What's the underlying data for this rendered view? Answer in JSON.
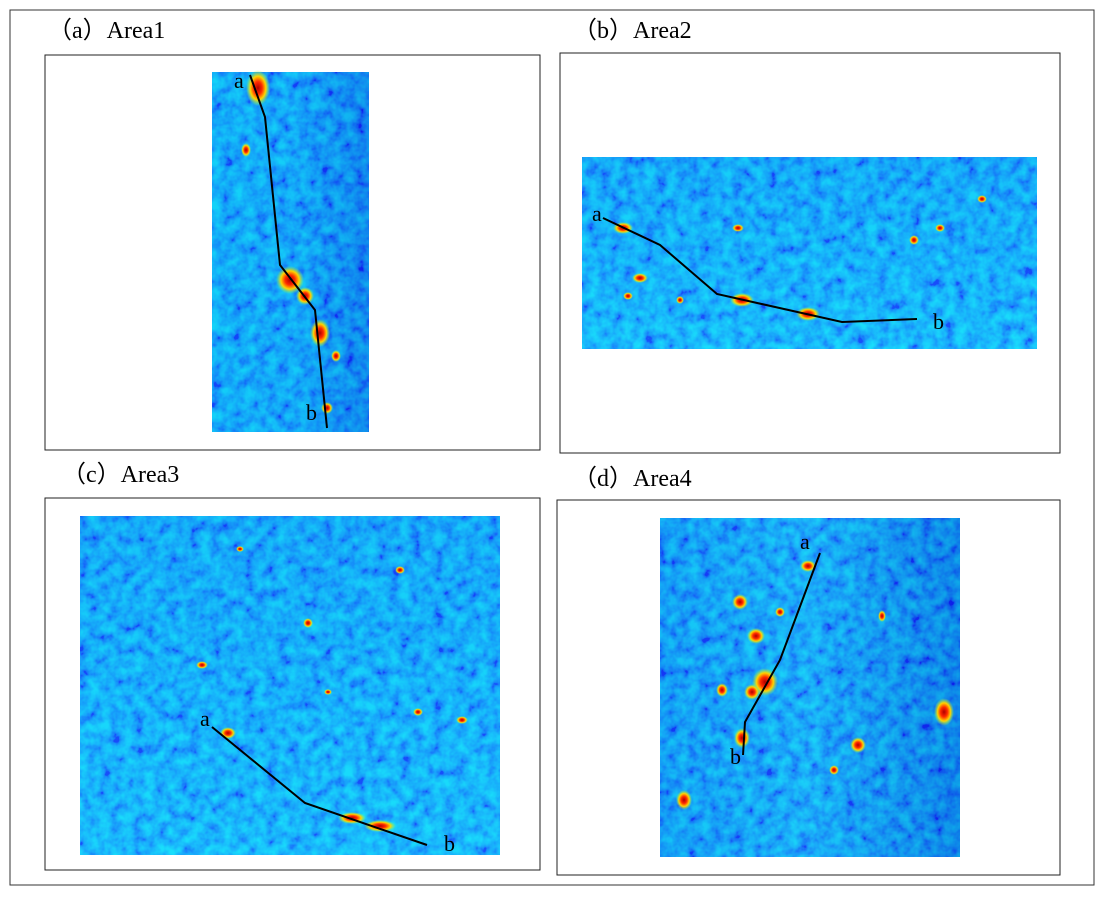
{
  "panels": [
    {
      "title": "（a）Area1",
      "start_label": "a",
      "end_label": "b"
    },
    {
      "title": "（b）Area2",
      "start_label": "a",
      "end_label": "b"
    },
    {
      "title": "（c）Area3",
      "start_label": "a",
      "end_label": "b"
    },
    {
      "title": "（d）Area4",
      "start_label": "a",
      "end_label": "b"
    }
  ]
}
